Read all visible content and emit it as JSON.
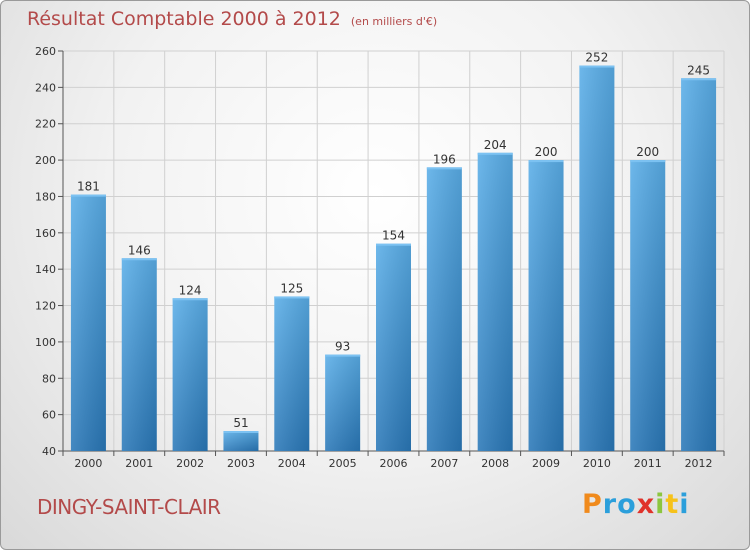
{
  "chart_data": {
    "type": "bar",
    "title": "Résultat Comptable 2000 à 2012",
    "subtitle": "(en milliers d'€)",
    "categories": [
      "2000",
      "2001",
      "2002",
      "2003",
      "2004",
      "2005",
      "2006",
      "2007",
      "2008",
      "2009",
      "2010",
      "2011",
      "2012"
    ],
    "values": [
      181,
      146,
      124,
      51,
      125,
      93,
      154,
      196,
      204,
      200,
      252,
      200,
      245
    ],
    "data_labels": [
      "181",
      "146",
      "124",
      "51",
      "125",
      "93",
      "154",
      "196",
      "204",
      "200",
      "252",
      "200",
      "245"
    ],
    "ylim": [
      40,
      260
    ],
    "yticks": [
      40,
      60,
      80,
      100,
      120,
      140,
      160,
      180,
      200,
      220,
      240,
      260
    ],
    "ytick_labels": [
      "40",
      "60",
      "80",
      "100",
      "120",
      "140",
      "160",
      "180",
      "200",
      "220",
      "240",
      "260"
    ],
    "grid": true,
    "bar_color": "#3d8fd6"
  },
  "location": "DINGY-SAINT-CLAIR",
  "logo": {
    "letters": [
      "P",
      "r",
      "o",
      "x",
      "i",
      "t",
      "i"
    ],
    "colors": [
      "#f08a1c",
      "#2b9fdb",
      "#2b9fdb",
      "#e0322a",
      "#8cc63f",
      "#f6c21a",
      "#2b9fdb"
    ]
  }
}
